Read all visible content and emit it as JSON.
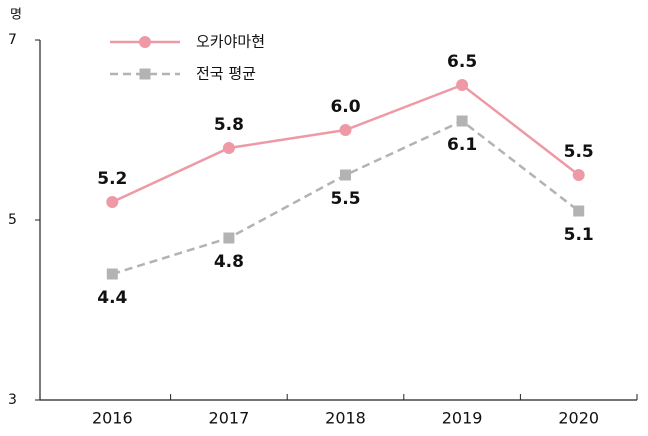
{
  "chart_data": {
    "type": "line",
    "y_label": "명",
    "categories": [
      "2016",
      "2017",
      "2018",
      "2019",
      "2020"
    ],
    "series": [
      {
        "name": "오카야마현",
        "color": "#ee9aa6",
        "marker": "circle",
        "dashed": false,
        "values": [
          5.2,
          5.8,
          6,
          6.5,
          5.5
        ],
        "value_labels": [
          "5.2",
          "5.8",
          "6.0",
          "6.5",
          "5.5"
        ],
        "label_position": "above"
      },
      {
        "name": "전국 평균",
        "color": "#b3b3b3",
        "marker": "square",
        "dashed": true,
        "values": [
          4.4,
          4.8,
          5.5,
          6.1,
          5.1
        ],
        "value_labels": [
          "4.4",
          "4.8",
          "5.5",
          "6.1",
          "5.1"
        ],
        "label_position": "below"
      }
    ],
    "ylim": [
      3,
      7
    ],
    "yticks": [
      3,
      5,
      7
    ],
    "legend": "upper left"
  }
}
